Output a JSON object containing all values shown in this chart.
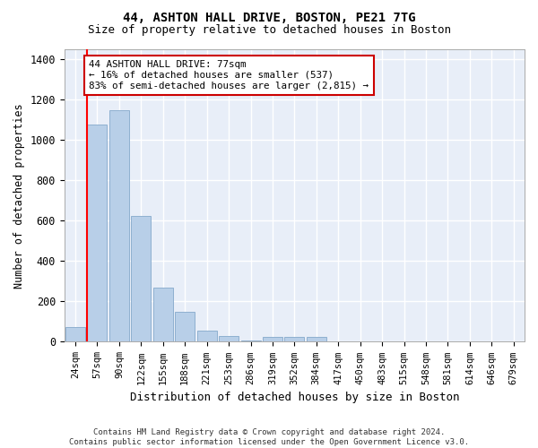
{
  "title1": "44, ASHTON HALL DRIVE, BOSTON, PE21 7TG",
  "title2": "Size of property relative to detached houses in Boston",
  "xlabel": "Distribution of detached houses by size in Boston",
  "ylabel": "Number of detached properties",
  "categories": [
    "24sqm",
    "57sqm",
    "90sqm",
    "122sqm",
    "155sqm",
    "188sqm",
    "221sqm",
    "253sqm",
    "286sqm",
    "319sqm",
    "352sqm",
    "384sqm",
    "417sqm",
    "450sqm",
    "483sqm",
    "515sqm",
    "548sqm",
    "581sqm",
    "614sqm",
    "646sqm",
    "679sqm"
  ],
  "values": [
    75,
    1075,
    1150,
    625,
    270,
    150,
    55,
    30,
    5,
    25,
    25,
    25,
    0,
    0,
    0,
    0,
    0,
    0,
    0,
    0,
    0
  ],
  "bar_color": "#b8cfe8",
  "bar_edge_color": "#8fb0d0",
  "red_line_x": 0.606,
  "annotation_text": "44 ASHTON HALL DRIVE: 77sqm\n← 16% of detached houses are smaller (537)\n83% of semi-detached houses are larger (2,815) →",
  "annotation_box_color": "#ffffff",
  "annotation_edge_color": "#cc0000",
  "ylim": [
    0,
    1450
  ],
  "yticks": [
    0,
    200,
    400,
    600,
    800,
    1000,
    1200,
    1400
  ],
  "background_color": "#e8eef8",
  "grid_color": "#ffffff",
  "fig_background": "#ffffff",
  "footnote1": "Contains HM Land Registry data © Crown copyright and database right 2024.",
  "footnote2": "Contains public sector information licensed under the Open Government Licence v3.0."
}
